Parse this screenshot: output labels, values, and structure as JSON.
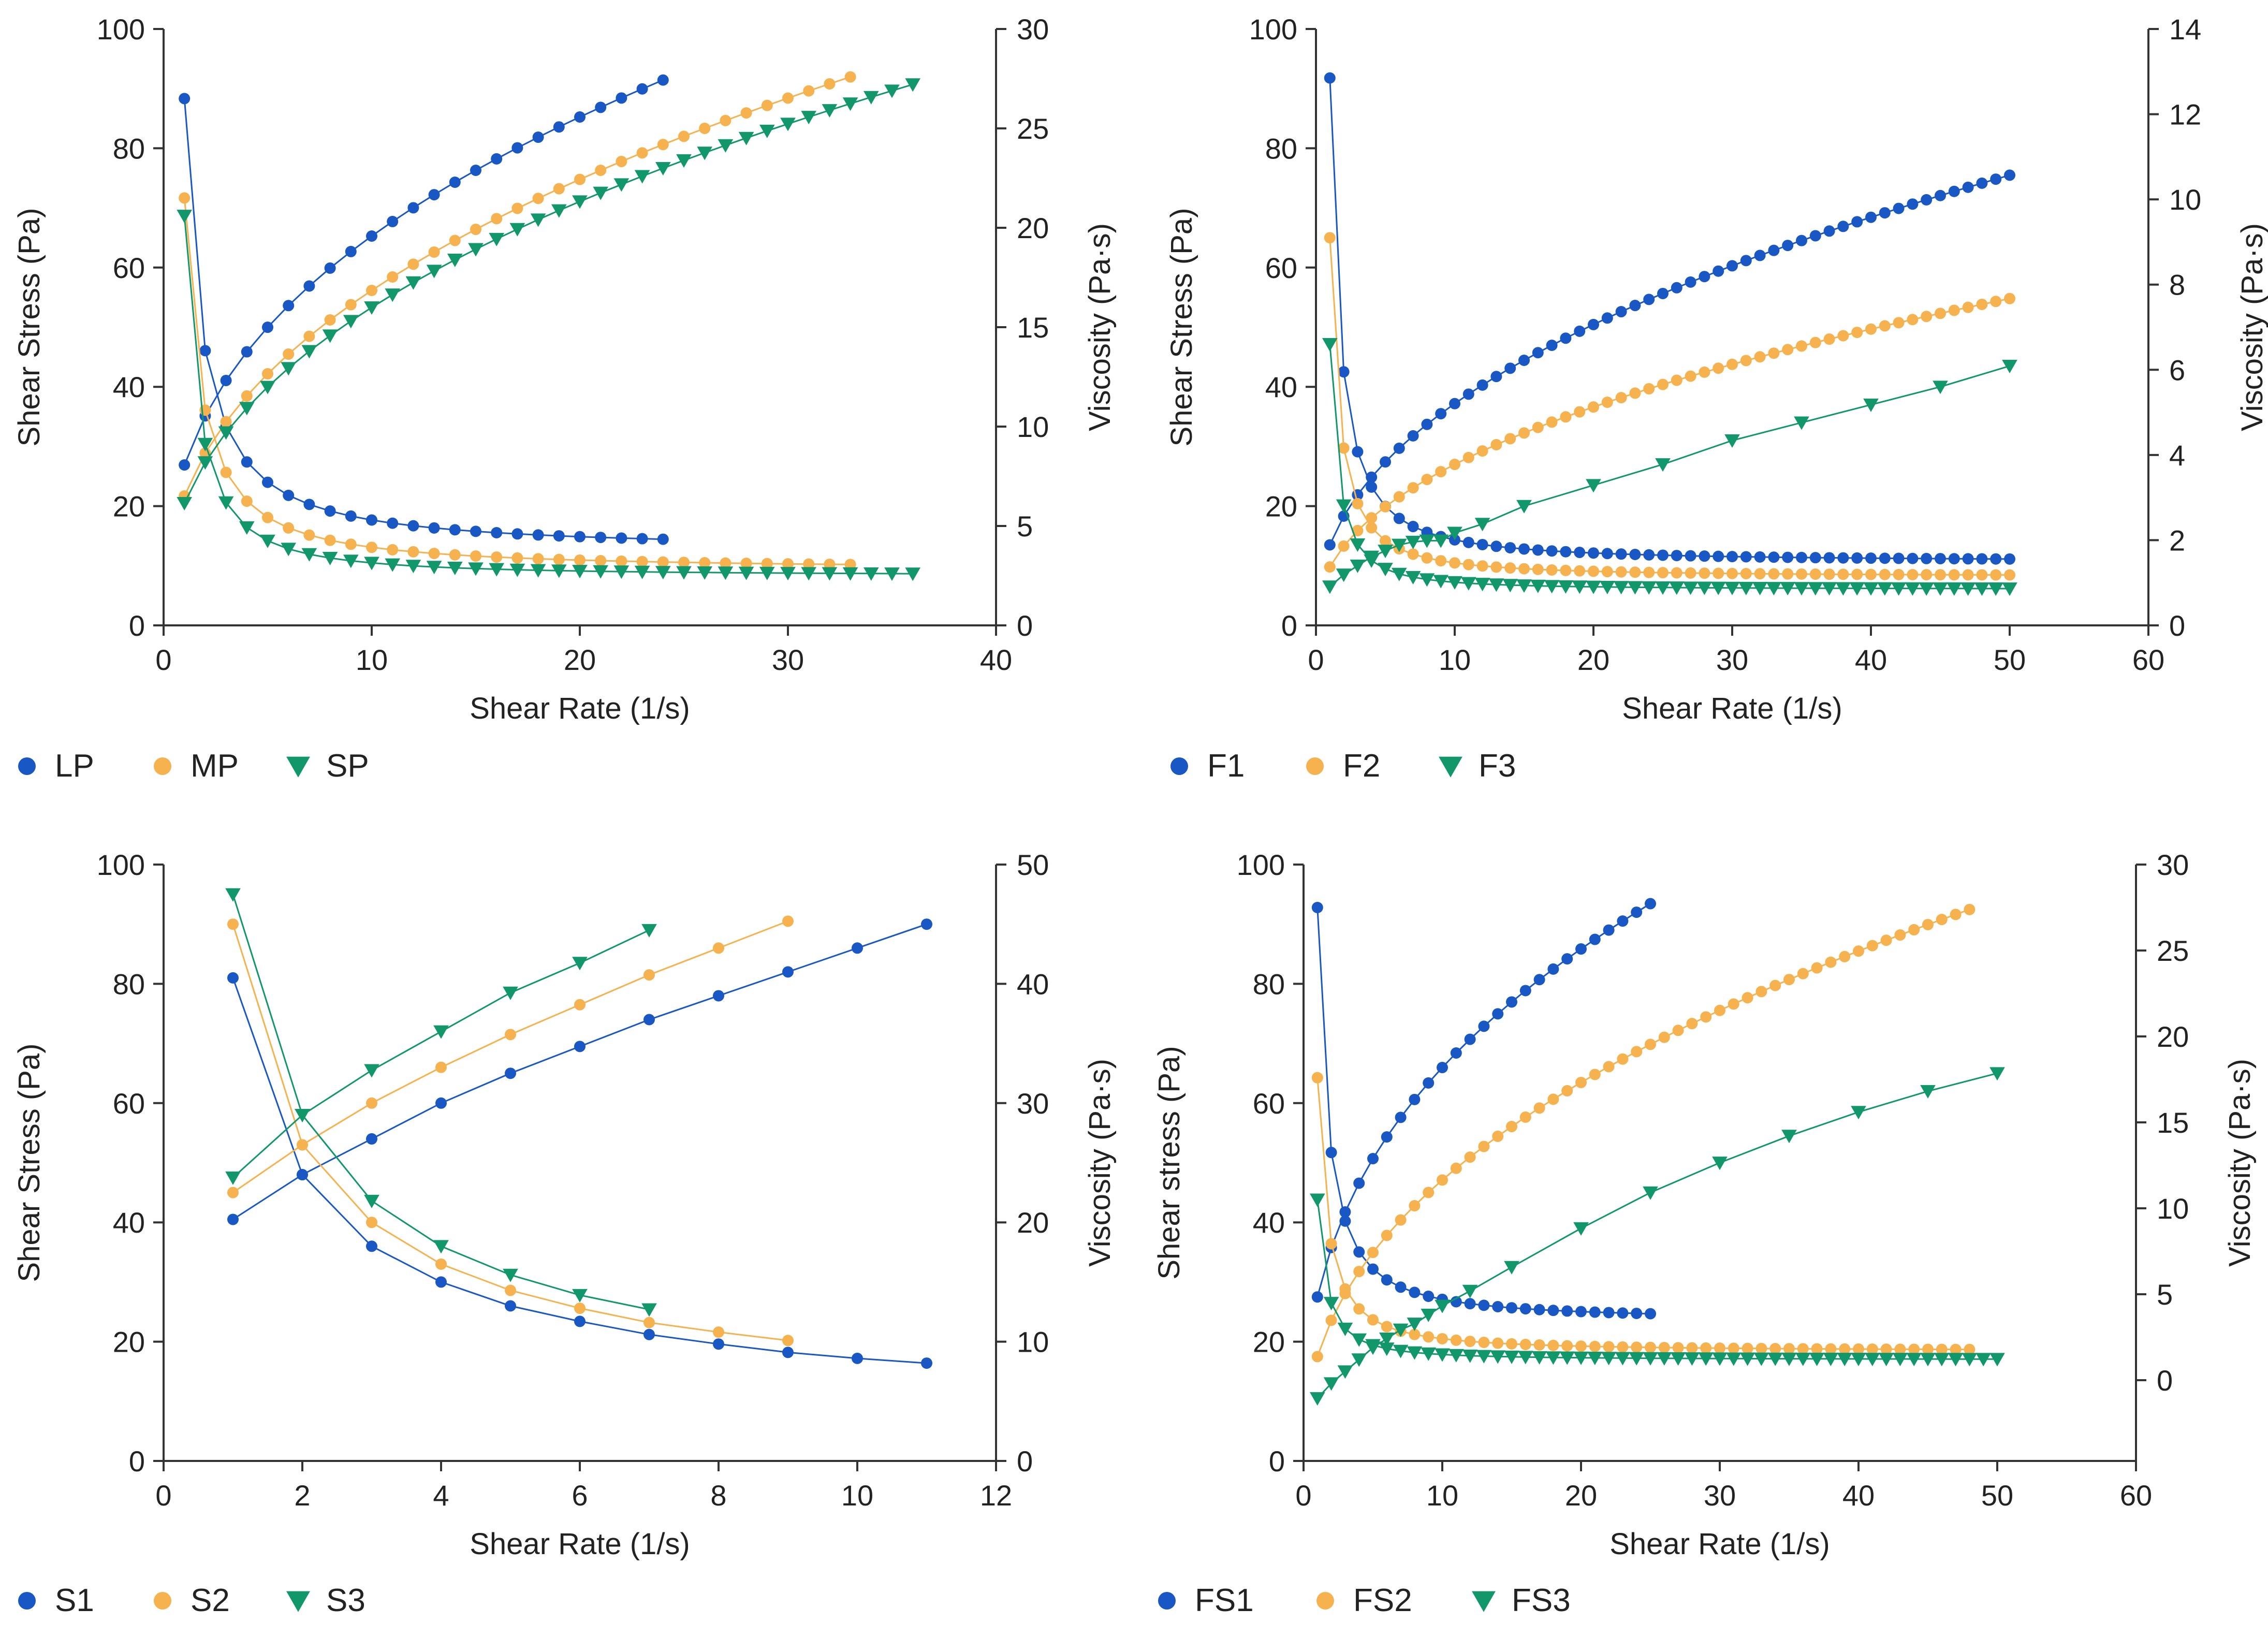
{
  "colors": {
    "blue": "#1957c4",
    "orange": "#f5b24e",
    "green": "#12976b",
    "axis": "#333333"
  },
  "chart_data": [
    {
      "type": "line",
      "xlabel": "Shear Rate (1/s)",
      "ylabel": "Shear Stress (Pa)",
      "y2label": "Viscosity (Pa·s)",
      "xlim": [
        0,
        40
      ],
      "ylim": [
        0,
        100
      ],
      "y2lim": [
        0,
        30
      ],
      "xticks": [
        0,
        10,
        20,
        30,
        40
      ],
      "yticks": [
        0,
        20,
        40,
        60,
        80,
        100
      ],
      "y2ticks": [
        0,
        5,
        10,
        15,
        20,
        25,
        30
      ],
      "legend": [
        "LP",
        "MP",
        "SP"
      ],
      "series": [
        {
          "name": "LP",
          "marker": "circle",
          "color": "blue",
          "stress": {
            "type": "power",
            "x_start": 1,
            "x_end": 24,
            "step": 1,
            "k": 26.9,
            "n": 0.385
          },
          "viscosity": {
            "type": "inverse",
            "x_start": 1,
            "x_end": 24,
            "step": 1,
            "a": 26.5,
            "b": 3.8,
            "p": 1.18
          }
        },
        {
          "name": "MP",
          "marker": "circle",
          "color": "orange",
          "stress": {
            "type": "power",
            "x_start": 1,
            "x_end": 33,
            "step": 1,
            "k": 21.7,
            "n": 0.413
          },
          "viscosity": {
            "type": "inverse",
            "x_start": 1,
            "x_end": 33,
            "step": 1,
            "a": 21.5,
            "b": 2.8,
            "p": 1.22
          }
        },
        {
          "name": "SP",
          "marker": "triangle",
          "color": "green",
          "stress": {
            "type": "power",
            "x_start": 1,
            "x_end": 36,
            "step": 1,
            "k": 20.5,
            "n": 0.415
          },
          "viscosity": {
            "type": "inverse",
            "x_start": 1,
            "x_end": 36,
            "step": 1,
            "a": 20.6,
            "b": 2.5,
            "p": 1.45
          }
        }
      ]
    },
    {
      "type": "line",
      "xlabel": "Shear Rate (1/s)",
      "ylabel": "Shear Stress (Pa)",
      "y2label": "Viscosity (Pa·s)",
      "xlim": [
        0,
        60
      ],
      "ylim": [
        0,
        100
      ],
      "y2lim": [
        0,
        14
      ],
      "xticks": [
        0,
        10,
        20,
        30,
        40,
        50,
        60
      ],
      "yticks": [
        0,
        20,
        40,
        60,
        80,
        100
      ],
      "y2ticks": [
        0,
        2,
        4,
        6,
        8,
        10,
        12,
        14
      ],
      "legend": [
        "F1",
        "F2",
        "F3"
      ],
      "series": [
        {
          "name": "F1",
          "marker": "circle",
          "color": "blue",
          "stress": {
            "type": "power",
            "x_start": 1,
            "x_end": 50,
            "step": 1,
            "k": 13.5,
            "n": 0.44
          },
          "viscosity": {
            "type": "inverse",
            "x_start": 1,
            "x_end": 50,
            "step": 1,
            "a": 12.85,
            "b": 1.5,
            "p": 1.35
          }
        },
        {
          "name": "F2",
          "marker": "circle",
          "color": "orange",
          "stress": {
            "type": "power",
            "x_start": 1,
            "x_end": 50,
            "step": 1,
            "k": 9.8,
            "n": 0.44
          },
          "viscosity": {
            "type": "inverse",
            "x_start": 1,
            "x_end": 50,
            "step": 1,
            "a": 9.1,
            "b": 1.15,
            "p": 1.4
          }
        },
        {
          "name": "F3",
          "marker": "triangle",
          "color": "green",
          "stress": {
            "type": "points",
            "x": [
              1,
              2,
              3,
              4,
              5,
              6,
              7,
              8,
              9,
              10,
              12,
              15,
              20,
              25,
              30,
              35,
              40,
              45,
              50
            ],
            "y": [
              6.5,
              8.5,
              10,
              11.5,
              12.5,
              13.5,
              14,
              14.2,
              14.2,
              15.5,
              17,
              20,
              23.5,
              27,
              31,
              34,
              37,
              40,
              43.5
            ]
          },
          "viscosity": {
            "type": "inverse",
            "x_start": 1,
            "x_end": 50,
            "step": 1,
            "a": 6.6,
            "b": 0.85,
            "p": 1.55
          }
        }
      ]
    },
    {
      "type": "line",
      "xlabel": "Shear Rate (1/s)",
      "ylabel": "Shear Stress (Pa)",
      "y2label": "Viscosity (Pa·s)",
      "xlim": [
        0,
        12
      ],
      "ylim": [
        0,
        100
      ],
      "y2lim": [
        0,
        50
      ],
      "xticks": [
        0,
        2,
        4,
        6,
        8,
        10,
        12
      ],
      "yticks": [
        0,
        20,
        40,
        60,
        80,
        100
      ],
      "y2ticks": [
        0,
        10,
        20,
        30,
        40,
        50
      ],
      "legend": [
        "S1",
        "S2",
        "S3"
      ],
      "series": [
        {
          "name": "S1",
          "marker": "circle",
          "color": "blue",
          "stress": {
            "type": "points",
            "x": [
              1,
              2,
              3,
              4,
              5,
              6,
              7,
              8,
              9,
              10,
              11
            ],
            "y": [
              40.5,
              48,
              54,
              60,
              65,
              69.5,
              74,
              78,
              82,
              86,
              90
            ]
          },
          "viscosity": {
            "type": "points",
            "x": [
              1,
              2,
              3,
              4,
              5,
              6,
              7,
              8,
              9,
              10,
              11
            ],
            "y": [
              40.5,
              24,
              18,
              15,
              13,
              11.7,
              10.6,
              9.8,
              9.1,
              8.6,
              8.2
            ]
          }
        },
        {
          "name": "S2",
          "marker": "circle",
          "color": "orange",
          "stress": {
            "type": "points",
            "x": [
              1,
              2,
              3,
              4,
              5,
              6,
              7,
              8,
              9
            ],
            "y": [
              45,
              53,
              60,
              66,
              71.5,
              76.5,
              81.5,
              86,
              90.5
            ]
          },
          "viscosity": {
            "type": "points",
            "x": [
              1,
              2,
              3,
              4,
              5,
              6,
              7,
              8,
              9
            ],
            "y": [
              45,
              26.5,
              20,
              16.5,
              14.3,
              12.8,
              11.6,
              10.8,
              10.1
            ]
          }
        },
        {
          "name": "S3",
          "marker": "triangle",
          "color": "green",
          "stress": {
            "type": "points",
            "x": [
              1,
              2,
              3,
              4,
              5,
              6,
              7
            ],
            "y": [
              47.5,
              58,
              65.5,
              72,
              78.5,
              83.5,
              89
            ]
          },
          "viscosity": {
            "type": "points",
            "x": [
              1,
              2,
              3,
              4,
              5,
              6,
              7
            ],
            "y": [
              47.5,
              29,
              21.8,
              18,
              15.6,
              13.9,
              12.7
            ]
          }
        }
      ]
    },
    {
      "type": "line",
      "xlabel": "Shear Rate (1/s)",
      "ylabel": "Shear stress (Pa)",
      "y2label": "Viscosity (Pa·s)",
      "xlim": [
        0,
        60
      ],
      "ylim": [
        0,
        100
      ],
      "y2lim": [
        -4.7,
        30
      ],
      "xticks": [
        0,
        10,
        20,
        30,
        40,
        50,
        60
      ],
      "yticks": [
        0,
        20,
        40,
        60,
        80,
        100
      ],
      "y2ticks": [
        0,
        5,
        10,
        15,
        20,
        25,
        30
      ],
      "legend": [
        "FS1",
        "FS2",
        "FS3"
      ],
      "series": [
        {
          "name": "FS1",
          "marker": "circle",
          "color": "blue",
          "stress": {
            "type": "power",
            "x_start": 1,
            "x_end": 25,
            "step": 1,
            "k": 27.5,
            "n": 0.38
          },
          "viscosity": {
            "type": "inverse",
            "x_start": 1,
            "x_end": 25,
            "step": 1,
            "a": 27.5,
            "b": 3.5,
            "p": 1.3
          }
        },
        {
          "name": "FS2",
          "marker": "circle",
          "color": "orange",
          "stress": {
            "type": "power",
            "x_start": 1,
            "x_end": 48,
            "step": 1,
            "k": 17.5,
            "n": 0.43
          },
          "viscosity": {
            "type": "inverse",
            "x_start": 1,
            "x_end": 48,
            "step": 1,
            "a": 17.6,
            "b": 1.7,
            "p": 1.35
          }
        },
        {
          "name": "FS3",
          "marker": "triangle",
          "color": "green",
          "stress": {
            "type": "points",
            "x": [
              1,
              2,
              3,
              4,
              5,
              6,
              7,
              8,
              9,
              10,
              12,
              15,
              20,
              25,
              30,
              35,
              40,
              45,
              50
            ],
            "y": [
              10.5,
              13,
              15,
              17,
              19,
              20.5,
              22,
              23,
              24.5,
              26,
              28.5,
              32.5,
              39,
              45,
              50,
              54.5,
              58.5,
              62,
              65
            ]
          },
          "viscosity": {
            "type": "inverse",
            "x_start": 1,
            "x_end": 50,
            "step": 1,
            "a": 10.5,
            "b": 1.2,
            "p": 1.5
          }
        }
      ]
    }
  ]
}
